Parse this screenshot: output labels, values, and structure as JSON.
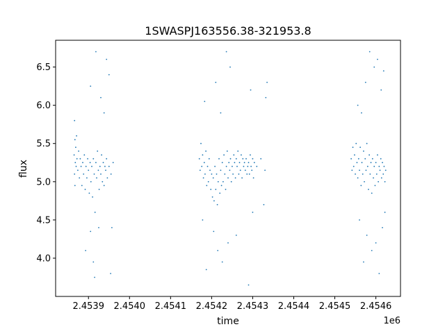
{
  "chart_data": {
    "type": "scatter",
    "title": "1SWASPJ163556.38-321953.8",
    "xlabel": "time",
    "ylabel": "flux",
    "x_offset_label": "1e6",
    "xlim": [
      2453820,
      2454660
    ],
    "ylim": [
      3.5,
      6.85
    ],
    "x_ticks": [
      2453900,
      2454000,
      2454100,
      2454200,
      2454300,
      2454400,
      2454500,
      2454600
    ],
    "x_tick_labels": [
      "2.4539",
      "2.4540",
      "2.4541",
      "2.4542",
      "2.4543",
      "2.4544",
      "2.4545",
      "2.4546"
    ],
    "y_ticks": [
      4.0,
      4.5,
      5.0,
      5.5,
      6.0,
      6.5
    ],
    "y_tick_labels": [
      "4.0",
      "4.5",
      "5.0",
      "5.5",
      "6.0",
      "6.5"
    ],
    "grid": false,
    "point_color": "#1f77b4",
    "series": [
      {
        "points": [
          [
            2453865,
            5.35
          ],
          [
            2453866,
            5.1
          ],
          [
            2453867,
            5.55
          ],
          [
            2453868,
            5.25
          ],
          [
            2453869,
            5.45
          ],
          [
            2453870,
            5.2
          ],
          [
            2453871,
            5.6
          ],
          [
            2453872,
            5.3
          ],
          [
            2453874,
            5.15
          ],
          [
            2453876,
            5.4
          ],
          [
            2453878,
            5.05
          ],
          [
            2453880,
            5.3
          ],
          [
            2453882,
            5.2
          ],
          [
            2453884,
            4.95
          ],
          [
            2453886,
            5.25
          ],
          [
            2453888,
            5.1
          ],
          [
            2453890,
            5.35
          ],
          [
            2453892,
            4.9
          ],
          [
            2453894,
            5.2
          ],
          [
            2453896,
            5.05
          ],
          [
            2453898,
            5.3
          ],
          [
            2453900,
            5.15
          ],
          [
            2453902,
            4.85
          ],
          [
            2453904,
            5.25
          ],
          [
            2453906,
            5.0
          ],
          [
            2453908,
            5.2
          ],
          [
            2453910,
            4.8
          ],
          [
            2453912,
            5.3
          ],
          [
            2453914,
            5.1
          ],
          [
            2453916,
            4.6
          ],
          [
            2453918,
            5.25
          ],
          [
            2453920,
            5.05
          ],
          [
            2453922,
            5.4
          ],
          [
            2453924,
            5.15
          ],
          [
            2453926,
            4.9
          ],
          [
            2453928,
            5.2
          ],
          [
            2453930,
            5.1
          ],
          [
            2453932,
            5.35
          ],
          [
            2453934,
            5.0
          ],
          [
            2453936,
            5.25
          ],
          [
            2453938,
            4.95
          ],
          [
            2453940,
            5.2
          ],
          [
            2453942,
            5.15
          ],
          [
            2453944,
            5.3
          ],
          [
            2453946,
            5.05
          ],
          [
            2453950,
            5.2
          ],
          [
            2453955,
            5.1
          ],
          [
            2453960,
            5.25
          ],
          [
            2453866,
            5.8
          ],
          [
            2453867,
            4.95
          ],
          [
            2453893,
            4.1
          ],
          [
            2453905,
            4.35
          ],
          [
            2453912,
            3.95
          ],
          [
            2453915,
            3.75
          ],
          [
            2453925,
            4.4
          ],
          [
            2453930,
            6.1
          ],
          [
            2453938,
            5.9
          ],
          [
            2453944,
            6.6
          ],
          [
            2453950,
            6.4
          ],
          [
            2453954,
            3.8
          ],
          [
            2453957,
            4.4
          ],
          [
            2453918,
            6.7
          ],
          [
            2453905,
            6.25
          ]
        ]
      },
      {
        "points": [
          [
            2454170,
            5.3
          ],
          [
            2454172,
            5.15
          ],
          [
            2454174,
            5.5
          ],
          [
            2454176,
            5.2
          ],
          [
            2454178,
            5.35
          ],
          [
            2454180,
            5.05
          ],
          [
            2454182,
            5.25
          ],
          [
            2454184,
            5.1
          ],
          [
            2454186,
            5.4
          ],
          [
            2454188,
            4.95
          ],
          [
            2454190,
            5.2
          ],
          [
            2454192,
            5.0
          ],
          [
            2454194,
            5.3
          ],
          [
            2454196,
            5.15
          ],
          [
            2454198,
            4.9
          ],
          [
            2454200,
            5.1
          ],
          [
            2454202,
            4.8
          ],
          [
            2454204,
            5.05
          ],
          [
            2454206,
            4.75
          ],
          [
            2454208,
            5.2
          ],
          [
            2454210,
            4.9
          ],
          [
            2454212,
            5.1
          ],
          [
            2454214,
            4.7
          ],
          [
            2454216,
            5.0
          ],
          [
            2454218,
            5.3
          ],
          [
            2454220,
            4.85
          ],
          [
            2454222,
            5.15
          ],
          [
            2454224,
            4.95
          ],
          [
            2454226,
            5.25
          ],
          [
            2454228,
            5.0
          ],
          [
            2454230,
            5.35
          ],
          [
            2454232,
            5.1
          ],
          [
            2454234,
            4.9
          ],
          [
            2454236,
            5.2
          ],
          [
            2454238,
            5.4
          ],
          [
            2454240,
            5.05
          ],
          [
            2454242,
            5.25
          ],
          [
            2454244,
            5.15
          ],
          [
            2454246,
            5.3
          ],
          [
            2454248,
            5.0
          ],
          [
            2454250,
            5.2
          ],
          [
            2454252,
            5.1
          ],
          [
            2454254,
            5.35
          ],
          [
            2454256,
            5.25
          ],
          [
            2454258,
            5.05
          ],
          [
            2454260,
            5.3
          ],
          [
            2454262,
            5.2
          ],
          [
            2454264,
            5.4
          ],
          [
            2454266,
            5.1
          ],
          [
            2454268,
            5.25
          ],
          [
            2454270,
            5.15
          ],
          [
            2454272,
            5.35
          ],
          [
            2454274,
            5.05
          ],
          [
            2454276,
            5.3
          ],
          [
            2454278,
            5.2
          ],
          [
            2454280,
            5.25
          ],
          [
            2454282,
            5.15
          ],
          [
            2454284,
            5.3
          ],
          [
            2454286,
            5.1
          ],
          [
            2454288,
            5.2
          ],
          [
            2454290,
            5.25
          ],
          [
            2454292,
            5.1
          ],
          [
            2454294,
            5.35
          ],
          [
            2454296,
            5.2
          ],
          [
            2454298,
            5.15
          ],
          [
            2454300,
            5.3
          ],
          [
            2454302,
            5.05
          ],
          [
            2454304,
            5.25
          ],
          [
            2454310,
            5.2
          ],
          [
            2454320,
            5.3
          ],
          [
            2454330,
            5.15
          ],
          [
            2454178,
            4.5
          ],
          [
            2454183,
            6.05
          ],
          [
            2454187,
            3.85
          ],
          [
            2454205,
            4.35
          ],
          [
            2454210,
            6.3
          ],
          [
            2454215,
            4.1
          ],
          [
            2454222,
            5.9
          ],
          [
            2454226,
            3.95
          ],
          [
            2454236,
            6.7
          ],
          [
            2454240,
            4.2
          ],
          [
            2454245,
            6.5
          ],
          [
            2454260,
            4.3
          ],
          [
            2454290,
            3.65
          ],
          [
            2454295,
            6.2
          ],
          [
            2454300,
            4.6
          ],
          [
            2454332,
            6.1
          ],
          [
            2454335,
            6.3
          ],
          [
            2454327,
            4.7
          ]
        ]
      },
      {
        "points": [
          [
            2454540,
            5.3
          ],
          [
            2454542,
            5.15
          ],
          [
            2454544,
            5.45
          ],
          [
            2454546,
            5.2
          ],
          [
            2454548,
            5.35
          ],
          [
            2454550,
            5.1
          ],
          [
            2454552,
            5.5
          ],
          [
            2454554,
            5.25
          ],
          [
            2454556,
            5.05
          ],
          [
            2454558,
            5.3
          ],
          [
            2454560,
            5.15
          ],
          [
            2454562,
            5.45
          ],
          [
            2454564,
            4.95
          ],
          [
            2454566,
            5.25
          ],
          [
            2454568,
            5.1
          ],
          [
            2454570,
            5.4
          ],
          [
            2454572,
            5.0
          ],
          [
            2454574,
            5.3
          ],
          [
            2454576,
            5.15
          ],
          [
            2454578,
            5.5
          ],
          [
            2454580,
            5.2
          ],
          [
            2454582,
            4.9
          ],
          [
            2454584,
            5.35
          ],
          [
            2454586,
            5.1
          ],
          [
            2454588,
            5.25
          ],
          [
            2454590,
            4.85
          ],
          [
            2454592,
            5.3
          ],
          [
            2454594,
            5.05
          ],
          [
            2454596,
            5.2
          ],
          [
            2454598,
            4.95
          ],
          [
            2454600,
            5.25
          ],
          [
            2454602,
            5.1
          ],
          [
            2454604,
            5.35
          ],
          [
            2454606,
            5.0
          ],
          [
            2454608,
            5.2
          ],
          [
            2454610,
            5.15
          ],
          [
            2454612,
            5.3
          ],
          [
            2454614,
            5.05
          ],
          [
            2454616,
            5.25
          ],
          [
            2454618,
            5.1
          ],
          [
            2454620,
            5.2
          ],
          [
            2454622,
            5.0
          ],
          [
            2454624,
            5.15
          ],
          [
            2454556,
            6.0
          ],
          [
            2454560,
            4.5
          ],
          [
            2454565,
            5.9
          ],
          [
            2454570,
            3.95
          ],
          [
            2454575,
            6.3
          ],
          [
            2454578,
            4.3
          ],
          [
            2454585,
            6.7
          ],
          [
            2454590,
            4.1
          ],
          [
            2454596,
            6.5
          ],
          [
            2454600,
            4.2
          ],
          [
            2454604,
            6.6
          ],
          [
            2454608,
            3.8
          ],
          [
            2454613,
            6.2
          ],
          [
            2454616,
            4.4
          ],
          [
            2454619,
            6.45
          ],
          [
            2454622,
            4.6
          ]
        ]
      }
    ]
  }
}
